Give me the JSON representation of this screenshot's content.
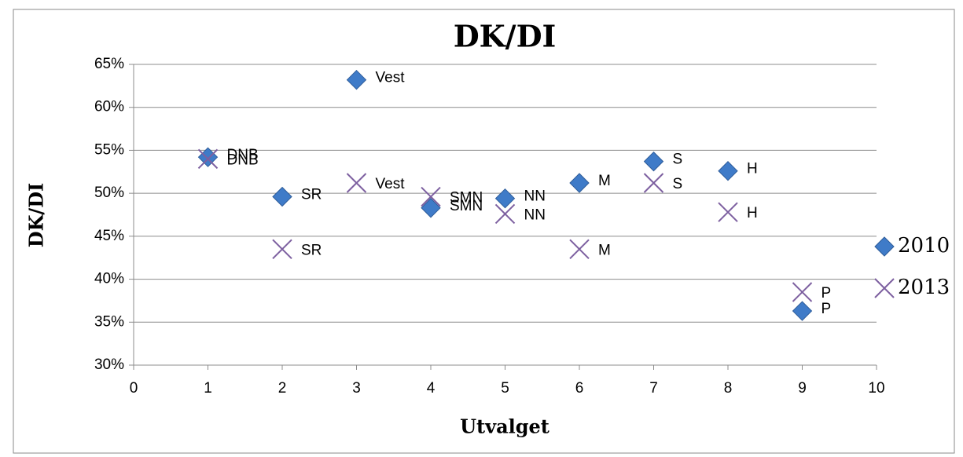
{
  "chart_data": {
    "type": "scatter",
    "title": "DK/DI",
    "x_label": "Utvalget",
    "y_label": "DK/DI",
    "xlim": [
      0,
      10
    ],
    "xticks": [
      0,
      1,
      2,
      3,
      4,
      5,
      6,
      7,
      8,
      9,
      10
    ],
    "ylim": [
      30,
      65
    ],
    "yticks": [
      {
        "value": 30,
        "label": "30%"
      },
      {
        "value": 35,
        "label": "35%"
      },
      {
        "value": 40,
        "label": "40%"
      },
      {
        "value": 45,
        "label": "45%"
      },
      {
        "value": 50,
        "label": "50%"
      },
      {
        "value": 55,
        "label": "55%"
      },
      {
        "value": 60,
        "label": "60%"
      },
      {
        "value": 65,
        "label": "65%"
      }
    ],
    "grid": true,
    "legend": "right",
    "series": [
      {
        "name": "2010",
        "color": "#3f7bc8",
        "marker": "diamond",
        "x": [
          1,
          2,
          3,
          4,
          5,
          6,
          7,
          8,
          9
        ],
        "values": [
          54.2,
          49.6,
          63.2,
          48.3,
          49.4,
          51.2,
          53.7,
          52.6,
          36.3
        ],
        "labels": [
          "DNB",
          "SR",
          "Vest",
          "SMN",
          "NN",
          "M",
          "S",
          "H",
          "P"
        ]
      },
      {
        "name": "2013",
        "color": "#7d60a0",
        "marker": "x",
        "x": [
          1,
          2,
          3,
          4,
          5,
          6,
          7,
          8,
          9
        ],
        "values": [
          54.0,
          43.5,
          51.2,
          49.6,
          47.6,
          43.5,
          51.2,
          47.8,
          38.5
        ],
        "labels": [
          "DNB",
          "SR",
          "Vest",
          "SMN",
          "NN",
          "M",
          "S",
          "H",
          "P"
        ]
      }
    ]
  }
}
